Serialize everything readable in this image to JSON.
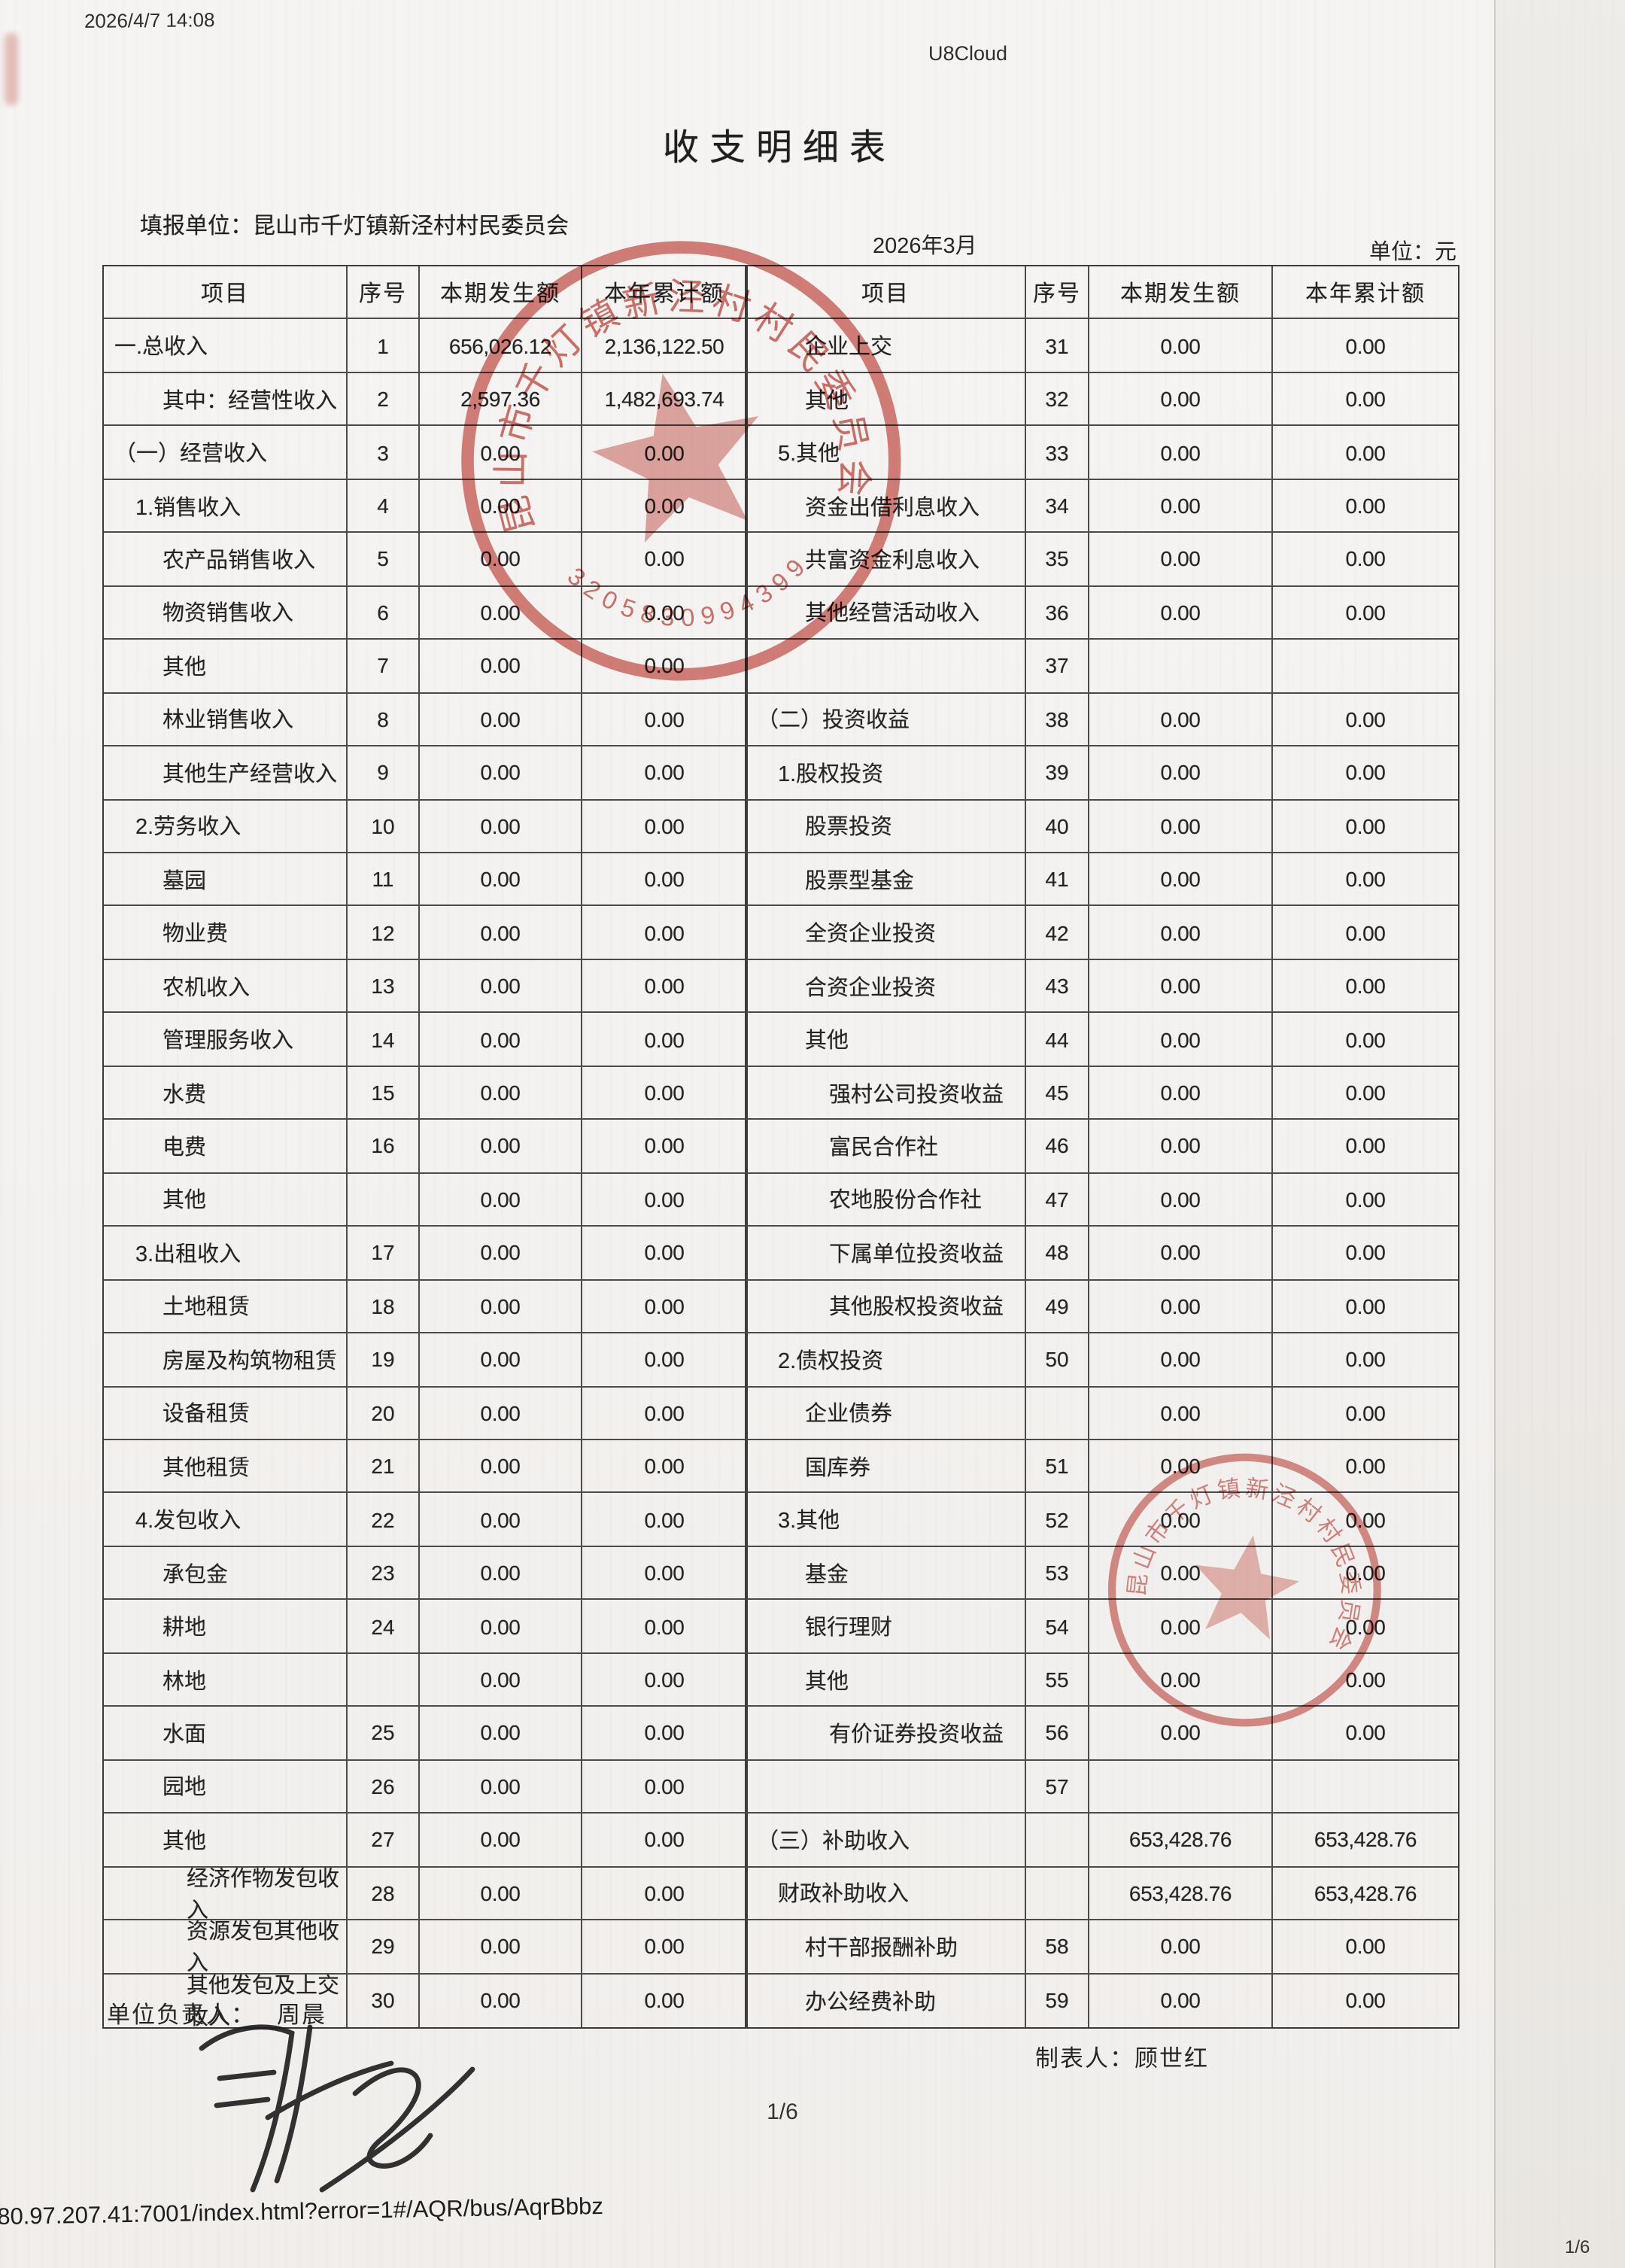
{
  "page": {
    "timestamp": "2026/4/7 14:08",
    "app_name": "U8Cloud",
    "title": "收支明细表",
    "report_unit_label": "填报单位：",
    "report_unit": "昆山市千灯镇新泾村村民委员会",
    "report_month": "2026年3月",
    "unit_label": "单位：元",
    "responsible_label": "单位负责人：",
    "responsible_name": "周晨",
    "preparer_label": "制表人：",
    "preparer_name": "顾世红",
    "page_indicator": "1/6",
    "corner_page_indicator": "1/6",
    "url": "80.97.207.41:7001/index.html?error=1#/AQR/bus/AqrBbbz"
  },
  "table": {
    "headers": [
      "项目",
      "序号",
      "本期发生额",
      "本年累计额"
    ],
    "left_rows": [
      {
        "item": "一.总收入",
        "seq": "1",
        "cur": "656,026.12",
        "ytd": "2,136,122.50",
        "ind": 0
      },
      {
        "item": "其中：经营性收入",
        "seq": "2",
        "cur": "2,597.36",
        "ytd": "1,482,693.74",
        "ind": 2
      },
      {
        "item": "（一）经营收入",
        "seq": "3",
        "cur": "0.00",
        "ytd": "0.00",
        "ind": 0
      },
      {
        "item": "1.销售收入",
        "seq": "4",
        "cur": "0.00",
        "ytd": "0.00",
        "ind": 1
      },
      {
        "item": "农产品销售收入",
        "seq": "5",
        "cur": "0.00",
        "ytd": "0.00",
        "ind": 2
      },
      {
        "item": "物资销售收入",
        "seq": "6",
        "cur": "0.00",
        "ytd": "0.00",
        "ind": 2
      },
      {
        "item": "其他",
        "seq": "7",
        "cur": "0.00",
        "ytd": "0.00",
        "ind": 2
      },
      {
        "item": "林业销售收入",
        "seq": "8",
        "cur": "0.00",
        "ytd": "0.00",
        "ind": 2
      },
      {
        "item": "其他生产经营收入",
        "seq": "9",
        "cur": "0.00",
        "ytd": "0.00",
        "ind": 2
      },
      {
        "item": "2.劳务收入",
        "seq": "10",
        "cur": "0.00",
        "ytd": "0.00",
        "ind": 1
      },
      {
        "item": "墓园",
        "seq": "11",
        "cur": "0.00",
        "ytd": "0.00",
        "ind": 2
      },
      {
        "item": "物业费",
        "seq": "12",
        "cur": "0.00",
        "ytd": "0.00",
        "ind": 2
      },
      {
        "item": "农机收入",
        "seq": "13",
        "cur": "0.00",
        "ytd": "0.00",
        "ind": 2
      },
      {
        "item": "管理服务收入",
        "seq": "14",
        "cur": "0.00",
        "ytd": "0.00",
        "ind": 2
      },
      {
        "item": "水费",
        "seq": "15",
        "cur": "0.00",
        "ytd": "0.00",
        "ind": 2
      },
      {
        "item": "电费",
        "seq": "16",
        "cur": "0.00",
        "ytd": "0.00",
        "ind": 2
      },
      {
        "item": "其他",
        "seq": "",
        "cur": "0.00",
        "ytd": "0.00",
        "ind": 2
      },
      {
        "item": "3.出租收入",
        "seq": "17",
        "cur": "0.00",
        "ytd": "0.00",
        "ind": 1
      },
      {
        "item": "土地租赁",
        "seq": "18",
        "cur": "0.00",
        "ytd": "0.00",
        "ind": 2
      },
      {
        "item": "房屋及构筑物租赁",
        "seq": "19",
        "cur": "0.00",
        "ytd": "0.00",
        "ind": 2
      },
      {
        "item": "设备租赁",
        "seq": "20",
        "cur": "0.00",
        "ytd": "0.00",
        "ind": 2
      },
      {
        "item": "其他租赁",
        "seq": "21",
        "cur": "0.00",
        "ytd": "0.00",
        "ind": 2
      },
      {
        "item": "4.发包收入",
        "seq": "22",
        "cur": "0.00",
        "ytd": "0.00",
        "ind": 1
      },
      {
        "item": "承包金",
        "seq": "23",
        "cur": "0.00",
        "ytd": "0.00",
        "ind": 2
      },
      {
        "item": "耕地",
        "seq": "24",
        "cur": "0.00",
        "ytd": "0.00",
        "ind": 2
      },
      {
        "item": "林地",
        "seq": "",
        "cur": "0.00",
        "ytd": "0.00",
        "ind": 2
      },
      {
        "item": "水面",
        "seq": "25",
        "cur": "0.00",
        "ytd": "0.00",
        "ind": 2
      },
      {
        "item": "园地",
        "seq": "26",
        "cur": "0.00",
        "ytd": "0.00",
        "ind": 2
      },
      {
        "item": "其他",
        "seq": "27",
        "cur": "0.00",
        "ytd": "0.00",
        "ind": 2
      },
      {
        "item": "经济作物发包收入",
        "seq": "28",
        "cur": "0.00",
        "ytd": "0.00",
        "ind": 3
      },
      {
        "item": "资源发包其他收入",
        "seq": "29",
        "cur": "0.00",
        "ytd": "0.00",
        "ind": 3
      },
      {
        "item": "其他发包及上交收入",
        "seq": "30",
        "cur": "0.00",
        "ytd": "0.00",
        "ind": 3
      }
    ],
    "right_rows": [
      {
        "item": "企业上交",
        "seq": "31",
        "cur": "0.00",
        "ytd": "0.00",
        "ind": 2
      },
      {
        "item": "其他",
        "seq": "32",
        "cur": "0.00",
        "ytd": "0.00",
        "ind": 2
      },
      {
        "item": "5.其他",
        "seq": "33",
        "cur": "0.00",
        "ytd": "0.00",
        "ind": 1
      },
      {
        "item": "资金出借利息收入",
        "seq": "34",
        "cur": "0.00",
        "ytd": "0.00",
        "ind": 2
      },
      {
        "item": "共富资金利息收入",
        "seq": "35",
        "cur": "0.00",
        "ytd": "0.00",
        "ind": 2
      },
      {
        "item": "其他经营活动收入",
        "seq": "36",
        "cur": "0.00",
        "ytd": "0.00",
        "ind": 2
      },
      {
        "item": "",
        "seq": "37",
        "cur": "",
        "ytd": "",
        "ind": 0
      },
      {
        "item": "（二）投资收益",
        "seq": "38",
        "cur": "0.00",
        "ytd": "0.00",
        "ind": 0
      },
      {
        "item": "1.股权投资",
        "seq": "39",
        "cur": "0.00",
        "ytd": "0.00",
        "ind": 1
      },
      {
        "item": "股票投资",
        "seq": "40",
        "cur": "0.00",
        "ytd": "0.00",
        "ind": 2
      },
      {
        "item": "股票型基金",
        "seq": "41",
        "cur": "0.00",
        "ytd": "0.00",
        "ind": 2
      },
      {
        "item": "全资企业投资",
        "seq": "42",
        "cur": "0.00",
        "ytd": "0.00",
        "ind": 2
      },
      {
        "item": "合资企业投资",
        "seq": "43",
        "cur": "0.00",
        "ytd": "0.00",
        "ind": 2
      },
      {
        "item": "其他",
        "seq": "44",
        "cur": "0.00",
        "ytd": "0.00",
        "ind": 2
      },
      {
        "item": "强村公司投资收益",
        "seq": "45",
        "cur": "0.00",
        "ytd": "0.00",
        "ind": 3
      },
      {
        "item": "富民合作社",
        "seq": "46",
        "cur": "0.00",
        "ytd": "0.00",
        "ind": 3
      },
      {
        "item": "农地股份合作社",
        "seq": "47",
        "cur": "0.00",
        "ytd": "0.00",
        "ind": 3
      },
      {
        "item": "下属单位投资收益",
        "seq": "48",
        "cur": "0.00",
        "ytd": "0.00",
        "ind": 3
      },
      {
        "item": "其他股权投资收益",
        "seq": "49",
        "cur": "0.00",
        "ytd": "0.00",
        "ind": 3
      },
      {
        "item": "2.债权投资",
        "seq": "50",
        "cur": "0.00",
        "ytd": "0.00",
        "ind": 1
      },
      {
        "item": "企业债券",
        "seq": "",
        "cur": "0.00",
        "ytd": "0.00",
        "ind": 2
      },
      {
        "item": "国库券",
        "seq": "51",
        "cur": "0.00",
        "ytd": "0.00",
        "ind": 2
      },
      {
        "item": "3.其他",
        "seq": "52",
        "cur": "0.00",
        "ytd": "0.00",
        "ind": 1
      },
      {
        "item": "基金",
        "seq": "53",
        "cur": "0.00",
        "ytd": "0.00",
        "ind": 2
      },
      {
        "item": "银行理财",
        "seq": "54",
        "cur": "0.00",
        "ytd": "0.00",
        "ind": 2
      },
      {
        "item": "其他",
        "seq": "55",
        "cur": "0.00",
        "ytd": "0.00",
        "ind": 2
      },
      {
        "item": "有价证券投资收益",
        "seq": "56",
        "cur": "0.00",
        "ytd": "0.00",
        "ind": 3
      },
      {
        "item": "",
        "seq": "57",
        "cur": "",
        "ytd": "",
        "ind": 0
      },
      {
        "item": "（三）补助收入",
        "seq": "",
        "cur": "653,428.76",
        "ytd": "653,428.76",
        "ind": 0
      },
      {
        "item": "财政补助收入",
        "seq": "",
        "cur": "653,428.76",
        "ytd": "653,428.76",
        "ind": 1
      },
      {
        "item": "村干部报酬补助",
        "seq": "58",
        "cur": "0.00",
        "ytd": "0.00",
        "ind": 2
      },
      {
        "item": "办公经费补助",
        "seq": "59",
        "cur": "0.00",
        "ytd": "0.00",
        "ind": 2
      }
    ]
  },
  "stamps": {
    "color": "#c0392f",
    "seal_text": "昆山市千灯镇新泾村村民委员会",
    "seal_number": "3205830994399"
  }
}
